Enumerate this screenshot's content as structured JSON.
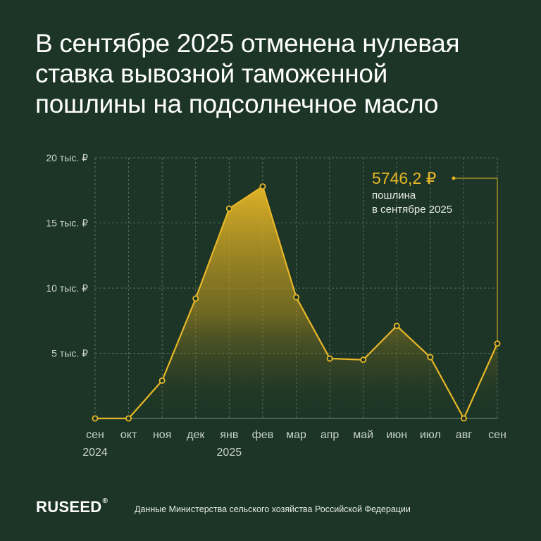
{
  "title_lines": [
    "В сентябре 2025 отменена нулевая",
    "ставка вывозной таможенной",
    "пошлины на подсолнечное масло"
  ],
  "chart_data": {
    "type": "area",
    "categories": [
      [
        "сен",
        "2024"
      ],
      [
        "окт"
      ],
      [
        "ноя"
      ],
      [
        "дек"
      ],
      [
        "янв",
        "2025"
      ],
      [
        "фев"
      ],
      [
        "мар"
      ],
      [
        "апр"
      ],
      [
        "май"
      ],
      [
        "июн"
      ],
      [
        "июл"
      ],
      [
        "авг"
      ],
      [
        "сен"
      ]
    ],
    "values": [
      0,
      0,
      2900,
      9200,
      16100,
      17800,
      9300,
      4600,
      4500,
      7100,
      4700,
      0,
      5746.2
    ],
    "ylim": [
      0,
      20000
    ],
    "yticks": [
      {
        "value": 20000,
        "label": "20 тыс. ₽"
      },
      {
        "value": 15000,
        "label": "15 тыс. ₽"
      },
      {
        "value": 10000,
        "label": "10 тыс. ₽"
      },
      {
        "value": 5000,
        "label": "5 тыс. ₽"
      }
    ],
    "grid": true,
    "annotation": {
      "value_text": "5746,2 ₽",
      "lines": [
        "пошлина",
        "в сентябре 2025"
      ]
    }
  },
  "colors": {
    "background": "#1c3526",
    "accent": "#e8b728",
    "grid": "#5a6e5f",
    "axis_text": "#c9d2cb"
  },
  "footer": {
    "brand": "RUSEED",
    "brand_mark": "®",
    "source": "Данные Министерства сельского хозяйства Российской Федерации"
  }
}
